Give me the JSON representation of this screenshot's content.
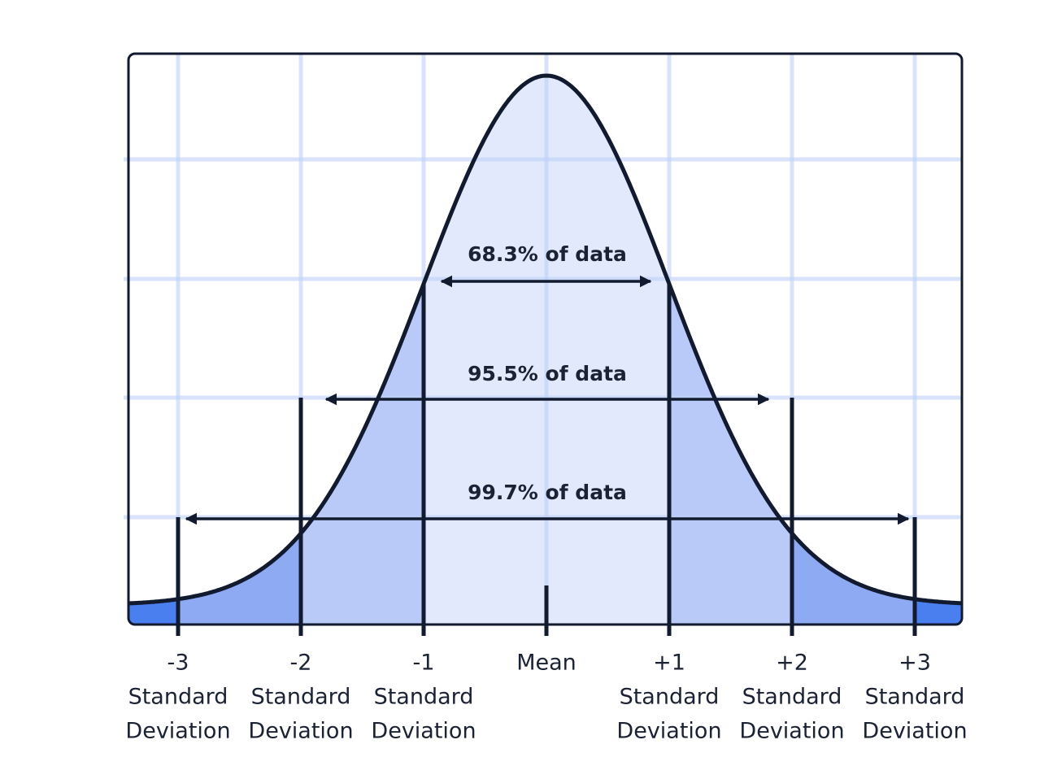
{
  "annotations": [
    "68.3% of data",
    "95.5% of data",
    "99.7% of data"
  ],
  "axis_labels": [
    {
      "value": "-3",
      "line1": "Standard",
      "line2": "Deviation"
    },
    {
      "value": "-2",
      "line1": "Standard",
      "line2": "Deviation"
    },
    {
      "value": "-1",
      "line1": "Standard",
      "line2": "Deviation"
    },
    {
      "value": "Mean"
    },
    {
      "value": "+1",
      "line1": "Standard",
      "line2": "Deviation"
    },
    {
      "value": "+2",
      "line1": "Standard",
      "line2": "Deviation"
    },
    {
      "value": "+3",
      "line1": "Standard",
      "line2": "Deviation"
    }
  ]
}
